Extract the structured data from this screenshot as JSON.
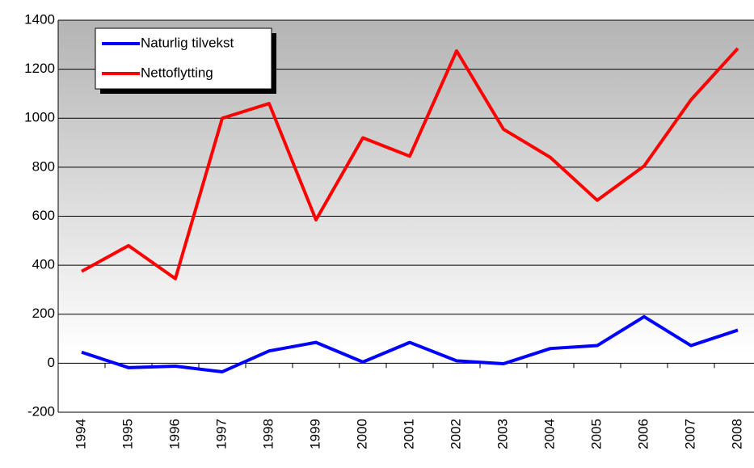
{
  "chart_data": {
    "type": "line",
    "categories": [
      "1994",
      "1995",
      "1996",
      "1997",
      "1998",
      "1999",
      "2000",
      "2001",
      "2002",
      "2003",
      "2004",
      "2005",
      "2006",
      "2007",
      "2008"
    ],
    "series": [
      {
        "name": "Naturlig tilvekst",
        "color": "#0000ff",
        "values": [
          45,
          -18,
          -12,
          -35,
          50,
          85,
          5,
          85,
          10,
          -2,
          60,
          72,
          190,
          72,
          135
        ]
      },
      {
        "name": "Nettoflytting",
        "color": "#ff0000",
        "values": [
          375,
          480,
          345,
          1000,
          1060,
          585,
          920,
          845,
          1275,
          955,
          840,
          665,
          805,
          1075,
          1285
        ]
      }
    ],
    "ylim": [
      -200,
      1400
    ],
    "yticks": [
      -200,
      0,
      200,
      400,
      600,
      800,
      1000,
      1200,
      1400
    ],
    "grid": true,
    "legend": "upper left"
  }
}
